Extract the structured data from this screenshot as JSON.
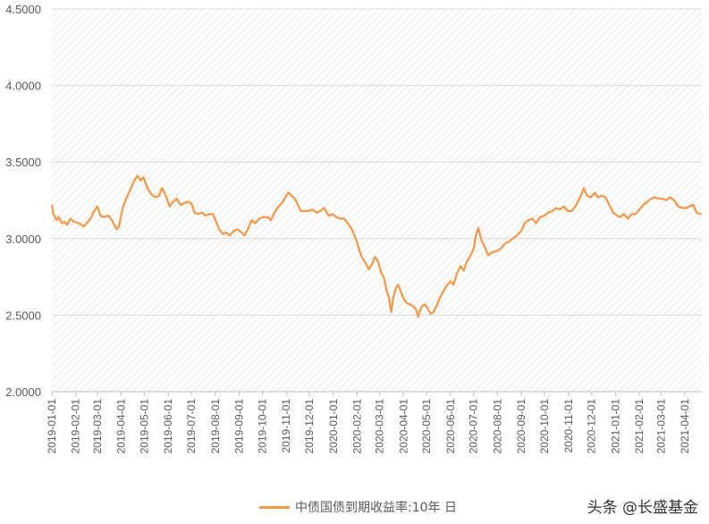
{
  "chart_data": {
    "type": "line",
    "title": "",
    "xlabel": "",
    "ylabel": "",
    "ylim": [
      2.0,
      4.5
    ],
    "yticks": [
      "2.0000",
      "2.5000",
      "3.0000",
      "3.5000",
      "4.0000",
      "4.5000"
    ],
    "xticks": [
      "2019-01-01",
      "2019-02-01",
      "2019-03-01",
      "2019-04-01",
      "2019-05-01",
      "2019-06-01",
      "2019-07-01",
      "2019-08-01",
      "2019-09-01",
      "2019-10-01",
      "2019-11-01",
      "2019-12-01",
      "2020-01-01",
      "2020-02-01",
      "2020-03-01",
      "2020-04-01",
      "2020-05-01",
      "2020-06-01",
      "2020-07-01",
      "2020-08-01",
      "2020-09-01",
      "2020-10-01",
      "2020-11-01",
      "2020-12-01",
      "2021-01-01",
      "2021-02-01",
      "2021-03-01",
      "2021-04-01"
    ],
    "xrange": [
      "2019-01-01",
      "2021-04-23"
    ],
    "grid": "diagonal hatch background with horizontal gridlines",
    "legend_position": "bottom",
    "series": [
      {
        "name": "中债国债到期收益率:10年 日",
        "color": "#F79646",
        "points": [
          [
            "2019-01-01",
            3.22
          ],
          [
            "2019-01-03",
            3.16
          ],
          [
            "2019-01-07",
            3.12
          ],
          [
            "2019-01-10",
            3.14
          ],
          [
            "2019-01-14",
            3.1
          ],
          [
            "2019-01-17",
            3.11
          ],
          [
            "2019-01-21",
            3.09
          ],
          [
            "2019-01-25",
            3.13
          ],
          [
            "2019-01-30",
            3.11
          ],
          [
            "2019-02-05",
            3.1
          ],
          [
            "2019-02-11",
            3.08
          ],
          [
            "2019-02-15",
            3.1
          ],
          [
            "2019-02-20",
            3.13
          ],
          [
            "2019-02-25",
            3.18
          ],
          [
            "2019-03-01",
            3.21
          ],
          [
            "2019-03-05",
            3.15
          ],
          [
            "2019-03-10",
            3.14
          ],
          [
            "2019-03-15",
            3.15
          ],
          [
            "2019-03-20",
            3.12
          ],
          [
            "2019-03-26",
            3.06
          ],
          [
            "2019-03-29",
            3.08
          ],
          [
            "2019-04-03",
            3.2
          ],
          [
            "2019-04-08",
            3.27
          ],
          [
            "2019-04-12",
            3.31
          ],
          [
            "2019-04-17",
            3.37
          ],
          [
            "2019-04-22",
            3.41
          ],
          [
            "2019-04-26",
            3.38
          ],
          [
            "2019-04-30",
            3.4
          ],
          [
            "2019-05-05",
            3.33
          ],
          [
            "2019-05-10",
            3.29
          ],
          [
            "2019-05-15",
            3.27
          ],
          [
            "2019-05-20",
            3.28
          ],
          [
            "2019-05-24",
            3.33
          ],
          [
            "2019-05-28",
            3.29
          ],
          [
            "2019-06-03",
            3.21
          ],
          [
            "2019-06-07",
            3.24
          ],
          [
            "2019-06-12",
            3.26
          ],
          [
            "2019-06-17",
            3.22
          ],
          [
            "2019-06-21",
            3.23
          ],
          [
            "2019-06-26",
            3.24
          ],
          [
            "2019-07-01",
            3.23
          ],
          [
            "2019-07-05",
            3.17
          ],
          [
            "2019-07-10",
            3.16
          ],
          [
            "2019-07-15",
            3.17
          ],
          [
            "2019-07-19",
            3.15
          ],
          [
            "2019-07-24",
            3.16
          ],
          [
            "2019-07-29",
            3.16
          ],
          [
            "2019-08-02",
            3.11
          ],
          [
            "2019-08-06",
            3.06
          ],
          [
            "2019-08-11",
            3.03
          ],
          [
            "2019-08-15",
            3.04
          ],
          [
            "2019-08-20",
            3.02
          ],
          [
            "2019-08-25",
            3.05
          ],
          [
            "2019-08-30",
            3.06
          ],
          [
            "2019-09-04",
            3.04
          ],
          [
            "2019-09-08",
            3.02
          ],
          [
            "2019-09-13",
            3.07
          ],
          [
            "2019-09-17",
            3.12
          ],
          [
            "2019-09-22",
            3.1
          ],
          [
            "2019-09-27",
            3.13
          ],
          [
            "2019-10-02",
            3.14
          ],
          [
            "2019-10-08",
            3.14
          ],
          [
            "2019-10-12",
            3.12
          ],
          [
            "2019-10-17",
            3.17
          ],
          [
            "2019-10-22",
            3.21
          ],
          [
            "2019-10-26",
            3.23
          ],
          [
            "2019-11-01",
            3.28
          ],
          [
            "2019-11-04",
            3.3
          ],
          [
            "2019-11-08",
            3.28
          ],
          [
            "2019-11-12",
            3.26
          ],
          [
            "2019-11-16",
            3.22
          ],
          [
            "2019-11-20",
            3.18
          ],
          [
            "2019-11-25",
            3.18
          ],
          [
            "2019-11-30",
            3.18
          ],
          [
            "2019-12-05",
            3.19
          ],
          [
            "2019-12-10",
            3.17
          ],
          [
            "2019-12-15",
            3.18
          ],
          [
            "2019-12-20",
            3.2
          ],
          [
            "2019-12-26",
            3.15
          ],
          [
            "2019-12-31",
            3.16
          ],
          [
            "2020-01-05",
            3.14
          ],
          [
            "2020-01-10",
            3.13
          ],
          [
            "2020-01-15",
            3.13
          ],
          [
            "2020-01-20",
            3.1
          ],
          [
            "2020-01-25",
            3.06
          ],
          [
            "2020-01-31",
            2.99
          ],
          [
            "2020-02-04",
            2.92
          ],
          [
            "2020-02-08",
            2.87
          ],
          [
            "2020-02-12",
            2.84
          ],
          [
            "2020-02-16",
            2.8
          ],
          [
            "2020-02-20",
            2.83
          ],
          [
            "2020-02-24",
            2.88
          ],
          [
            "2020-02-28",
            2.85
          ],
          [
            "2020-03-03",
            2.78
          ],
          [
            "2020-03-07",
            2.74
          ],
          [
            "2020-03-10",
            2.66
          ],
          [
            "2020-03-13",
            2.62
          ],
          [
            "2020-03-16",
            2.52
          ],
          [
            "2020-03-19",
            2.62
          ],
          [
            "2020-03-22",
            2.67
          ],
          [
            "2020-03-25",
            2.7
          ],
          [
            "2020-03-28",
            2.66
          ],
          [
            "2020-04-01",
            2.61
          ],
          [
            "2020-04-05",
            2.58
          ],
          [
            "2020-04-09",
            2.57
          ],
          [
            "2020-04-13",
            2.56
          ],
          [
            "2020-04-17",
            2.54
          ],
          [
            "2020-04-20",
            2.49
          ],
          [
            "2020-04-24",
            2.55
          ],
          [
            "2020-04-28",
            2.57
          ],
          [
            "2020-05-02",
            2.55
          ],
          [
            "2020-05-06",
            2.51
          ],
          [
            "2020-05-10",
            2.52
          ],
          [
            "2020-05-14",
            2.56
          ],
          [
            "2020-05-18",
            2.61
          ],
          [
            "2020-05-22",
            2.65
          ],
          [
            "2020-05-27",
            2.69
          ],
          [
            "2020-06-01",
            2.72
          ],
          [
            "2020-06-05",
            2.7
          ],
          [
            "2020-06-09",
            2.77
          ],
          [
            "2020-06-14",
            2.82
          ],
          [
            "2020-06-18",
            2.79
          ],
          [
            "2020-06-22",
            2.85
          ],
          [
            "2020-06-26",
            2.88
          ],
          [
            "2020-07-01",
            2.93
          ],
          [
            "2020-07-04",
            3.02
          ],
          [
            "2020-07-07",
            3.07
          ],
          [
            "2020-07-11",
            2.99
          ],
          [
            "2020-07-15",
            2.95
          ],
          [
            "2020-07-20",
            2.89
          ],
          [
            "2020-07-25",
            2.91
          ],
          [
            "2020-08-01",
            2.92
          ],
          [
            "2020-08-06",
            2.94
          ],
          [
            "2020-08-11",
            2.97
          ],
          [
            "2020-08-16",
            2.98
          ],
          [
            "2020-08-21",
            3.0
          ],
          [
            "2020-08-26",
            3.02
          ],
          [
            "2020-09-01",
            3.05
          ],
          [
            "2020-09-05",
            3.1
          ],
          [
            "2020-09-10",
            3.12
          ],
          [
            "2020-09-15",
            3.13
          ],
          [
            "2020-09-20",
            3.1
          ],
          [
            "2020-09-25",
            3.14
          ],
          [
            "2020-10-01",
            3.15
          ],
          [
            "2020-10-06",
            3.17
          ],
          [
            "2020-10-11",
            3.18
          ],
          [
            "2020-10-16",
            3.2
          ],
          [
            "2020-10-21",
            3.19
          ],
          [
            "2020-10-26",
            3.21
          ],
          [
            "2020-10-31",
            3.18
          ],
          [
            "2020-11-05",
            3.18
          ],
          [
            "2020-11-10",
            3.21
          ],
          [
            "2020-11-14",
            3.25
          ],
          [
            "2020-11-18",
            3.29
          ],
          [
            "2020-11-21",
            3.33
          ],
          [
            "2020-11-25",
            3.28
          ],
          [
            "2020-11-30",
            3.27
          ],
          [
            "2020-12-05",
            3.3
          ],
          [
            "2020-12-09",
            3.27
          ],
          [
            "2020-12-14",
            3.28
          ],
          [
            "2020-12-19",
            3.27
          ],
          [
            "2020-12-24",
            3.22
          ],
          [
            "2020-12-29",
            3.17
          ],
          [
            "2021-01-03",
            3.15
          ],
          [
            "2021-01-07",
            3.14
          ],
          [
            "2021-01-12",
            3.16
          ],
          [
            "2021-01-17",
            3.13
          ],
          [
            "2021-01-22",
            3.16
          ],
          [
            "2021-01-27",
            3.16
          ],
          [
            "2021-02-01",
            3.19
          ],
          [
            "2021-02-06",
            3.22
          ],
          [
            "2021-02-11",
            3.24
          ],
          [
            "2021-02-16",
            3.26
          ],
          [
            "2021-02-21",
            3.27
          ],
          [
            "2021-02-26",
            3.26
          ],
          [
            "2021-03-03",
            3.26
          ],
          [
            "2021-03-08",
            3.25
          ],
          [
            "2021-03-13",
            3.27
          ],
          [
            "2021-03-18",
            3.25
          ],
          [
            "2021-03-23",
            3.21
          ],
          [
            "2021-03-28",
            3.2
          ],
          [
            "2021-04-02",
            3.2
          ],
          [
            "2021-04-07",
            3.21
          ],
          [
            "2021-04-12",
            3.22
          ],
          [
            "2021-04-16",
            3.17
          ],
          [
            "2021-04-20",
            3.16
          ],
          [
            "2021-04-23",
            3.16
          ]
        ]
      }
    ]
  },
  "legend": {
    "label": "中债国债到期收益率:10年 日",
    "color": "#F79646"
  },
  "watermark": "头条 @长盛基金"
}
